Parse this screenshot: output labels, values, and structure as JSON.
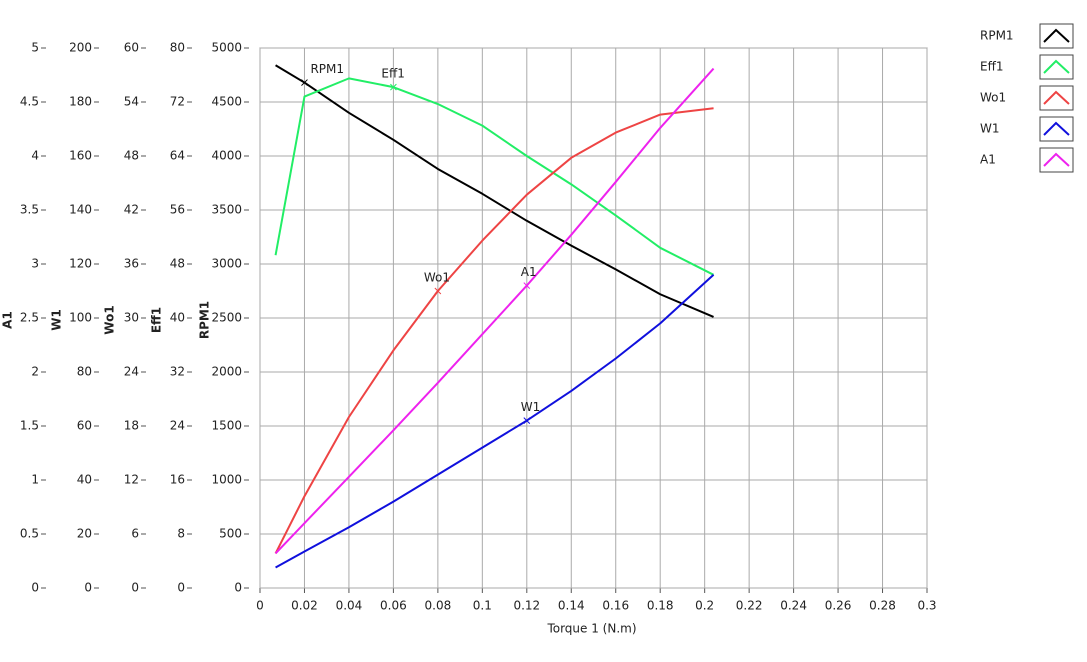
{
  "chart_data": {
    "type": "line",
    "xlabel": "Torque 1 (N.m)",
    "xlim": [
      0,
      0.3
    ],
    "xticks": [
      0,
      0.02,
      0.04,
      0.06,
      0.08,
      0.1,
      0.12,
      0.14,
      0.16,
      0.18,
      0.2,
      0.22,
      0.24,
      0.26,
      0.28,
      0.3
    ],
    "grid": true,
    "legend": "right",
    "y_axes": [
      {
        "label": "A1",
        "ylim": [
          0,
          5
        ],
        "yticks": [
          0,
          0.5,
          1,
          1.5,
          2,
          2.5,
          3,
          3.5,
          4,
          4.5,
          5
        ]
      },
      {
        "label": "W1",
        "ylim": [
          0,
          200
        ],
        "yticks": [
          0,
          20,
          40,
          60,
          80,
          100,
          120,
          140,
          160,
          180,
          200
        ]
      },
      {
        "label": "Wo1",
        "ylim": [
          0,
          60
        ],
        "yticks": [
          0,
          6,
          12,
          18,
          24,
          30,
          36,
          42,
          48,
          54,
          60
        ]
      },
      {
        "label": "Eff1",
        "ylim": [
          0,
          80
        ],
        "yticks": [
          0,
          8,
          16,
          24,
          32,
          40,
          48,
          56,
          64,
          72,
          80
        ]
      },
      {
        "label": "RPM1",
        "ylim": [
          0,
          5000
        ],
        "yticks": [
          0,
          500,
          1000,
          1500,
          2000,
          2500,
          3000,
          3500,
          4000,
          4500,
          5000
        ]
      }
    ],
    "x": [
      0.007,
      0.02,
      0.04,
      0.06,
      0.08,
      0.1,
      0.12,
      0.14,
      0.16,
      0.18,
      0.204
    ],
    "series": [
      {
        "name": "RPM1",
        "color": "#000000",
        "axis": 4,
        "values": [
          4840,
          4680,
          4400,
          4150,
          3880,
          3650,
          3400,
          3170,
          2950,
          2720,
          2510
        ]
      },
      {
        "name": "Eff1",
        "color": "#22ee66",
        "axis": 3,
        "values": [
          49.3,
          72.8,
          75.5,
          74.2,
          71.7,
          68.5,
          64,
          59.8,
          55.2,
          50.4,
          46.4
        ]
      },
      {
        "name": "Wo1",
        "color": "#ee4444",
        "axis": 2,
        "values": [
          3.84,
          10.2,
          19,
          26.4,
          33,
          38.6,
          43.7,
          47.8,
          50.6,
          52.6,
          53.3
        ]
      },
      {
        "name": "W1",
        "color": "#1010dd",
        "axis": 1,
        "values": [
          7.6,
          13.5,
          22.5,
          32,
          42,
          52,
          62,
          73,
          85,
          98,
          116
        ]
      },
      {
        "name": "A1",
        "color": "#ee22ee",
        "axis": 0,
        "values": [
          0.32,
          0.6,
          1.03,
          1.46,
          1.9,
          2.35,
          2.8,
          3.27,
          3.76,
          4.26,
          4.81
        ]
      }
    ]
  }
}
